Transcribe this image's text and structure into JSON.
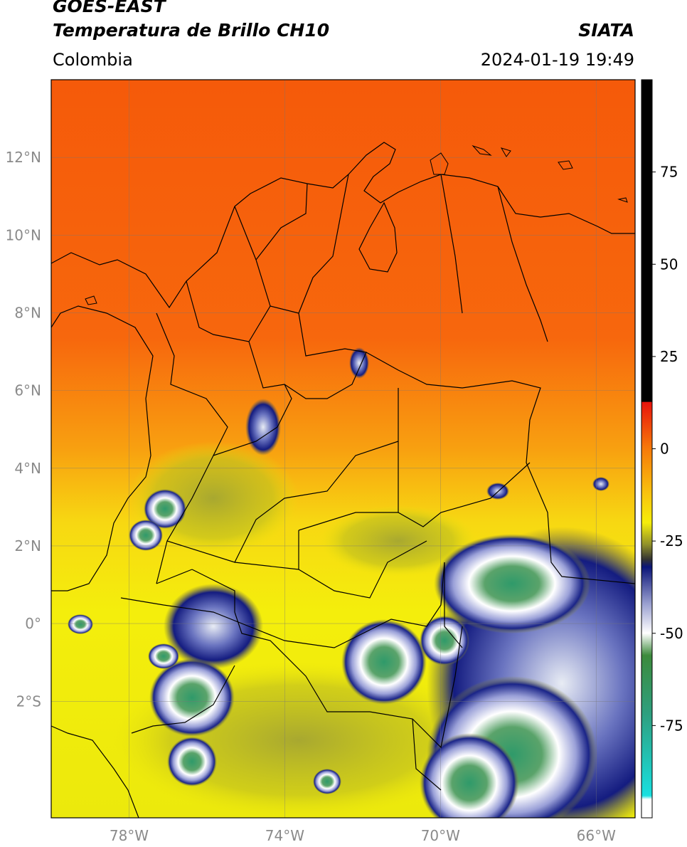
{
  "header": {
    "satellite": "GOES-EAST",
    "product": "Temperatura de Brillo CH10",
    "region": "Colombia",
    "source": "SIATA",
    "datetime": "2024-01-19 19:49"
  },
  "map": {
    "lon_range": [
      -80,
      -65
    ],
    "lat_range": [
      -5,
      14
    ],
    "lon_ticks": [
      {
        "value": -78,
        "label": "78°W"
      },
      {
        "value": -74,
        "label": "74°W"
      },
      {
        "value": -70,
        "label": "70°W"
      },
      {
        "value": -66,
        "label": "66°W"
      }
    ],
    "lat_ticks": [
      {
        "value": 12,
        "label": "12°N"
      },
      {
        "value": 10,
        "label": "10°N"
      },
      {
        "value": 8,
        "label": "8°N"
      },
      {
        "value": 6,
        "label": "6°N"
      },
      {
        "value": 4,
        "label": "4°N"
      },
      {
        "value": 2,
        "label": "2°N"
      },
      {
        "value": 0,
        "label": "0°"
      },
      {
        "value": -2,
        "label": "2°S"
      }
    ],
    "grid": true
  },
  "colorbar": {
    "range": [
      -100,
      100
    ],
    "ticks": [
      {
        "value": 75,
        "label": "75"
      },
      {
        "value": 50,
        "label": "50"
      },
      {
        "value": 25,
        "label": "25"
      },
      {
        "value": 0,
        "label": "0"
      },
      {
        "value": -25,
        "label": "-25"
      },
      {
        "value": -50,
        "label": "-50"
      },
      {
        "value": -75,
        "label": "-75"
      }
    ],
    "colors": {
      "black": "#000000",
      "red": "#e8140c",
      "orange": "#f77a0a",
      "yellow": "#f5ee0a",
      "olive": "#8f8f2a",
      "navy": "#0a1478",
      "white": "#ffffff",
      "green": "#3c8a3c",
      "teal": "#18c0c0"
    }
  }
}
